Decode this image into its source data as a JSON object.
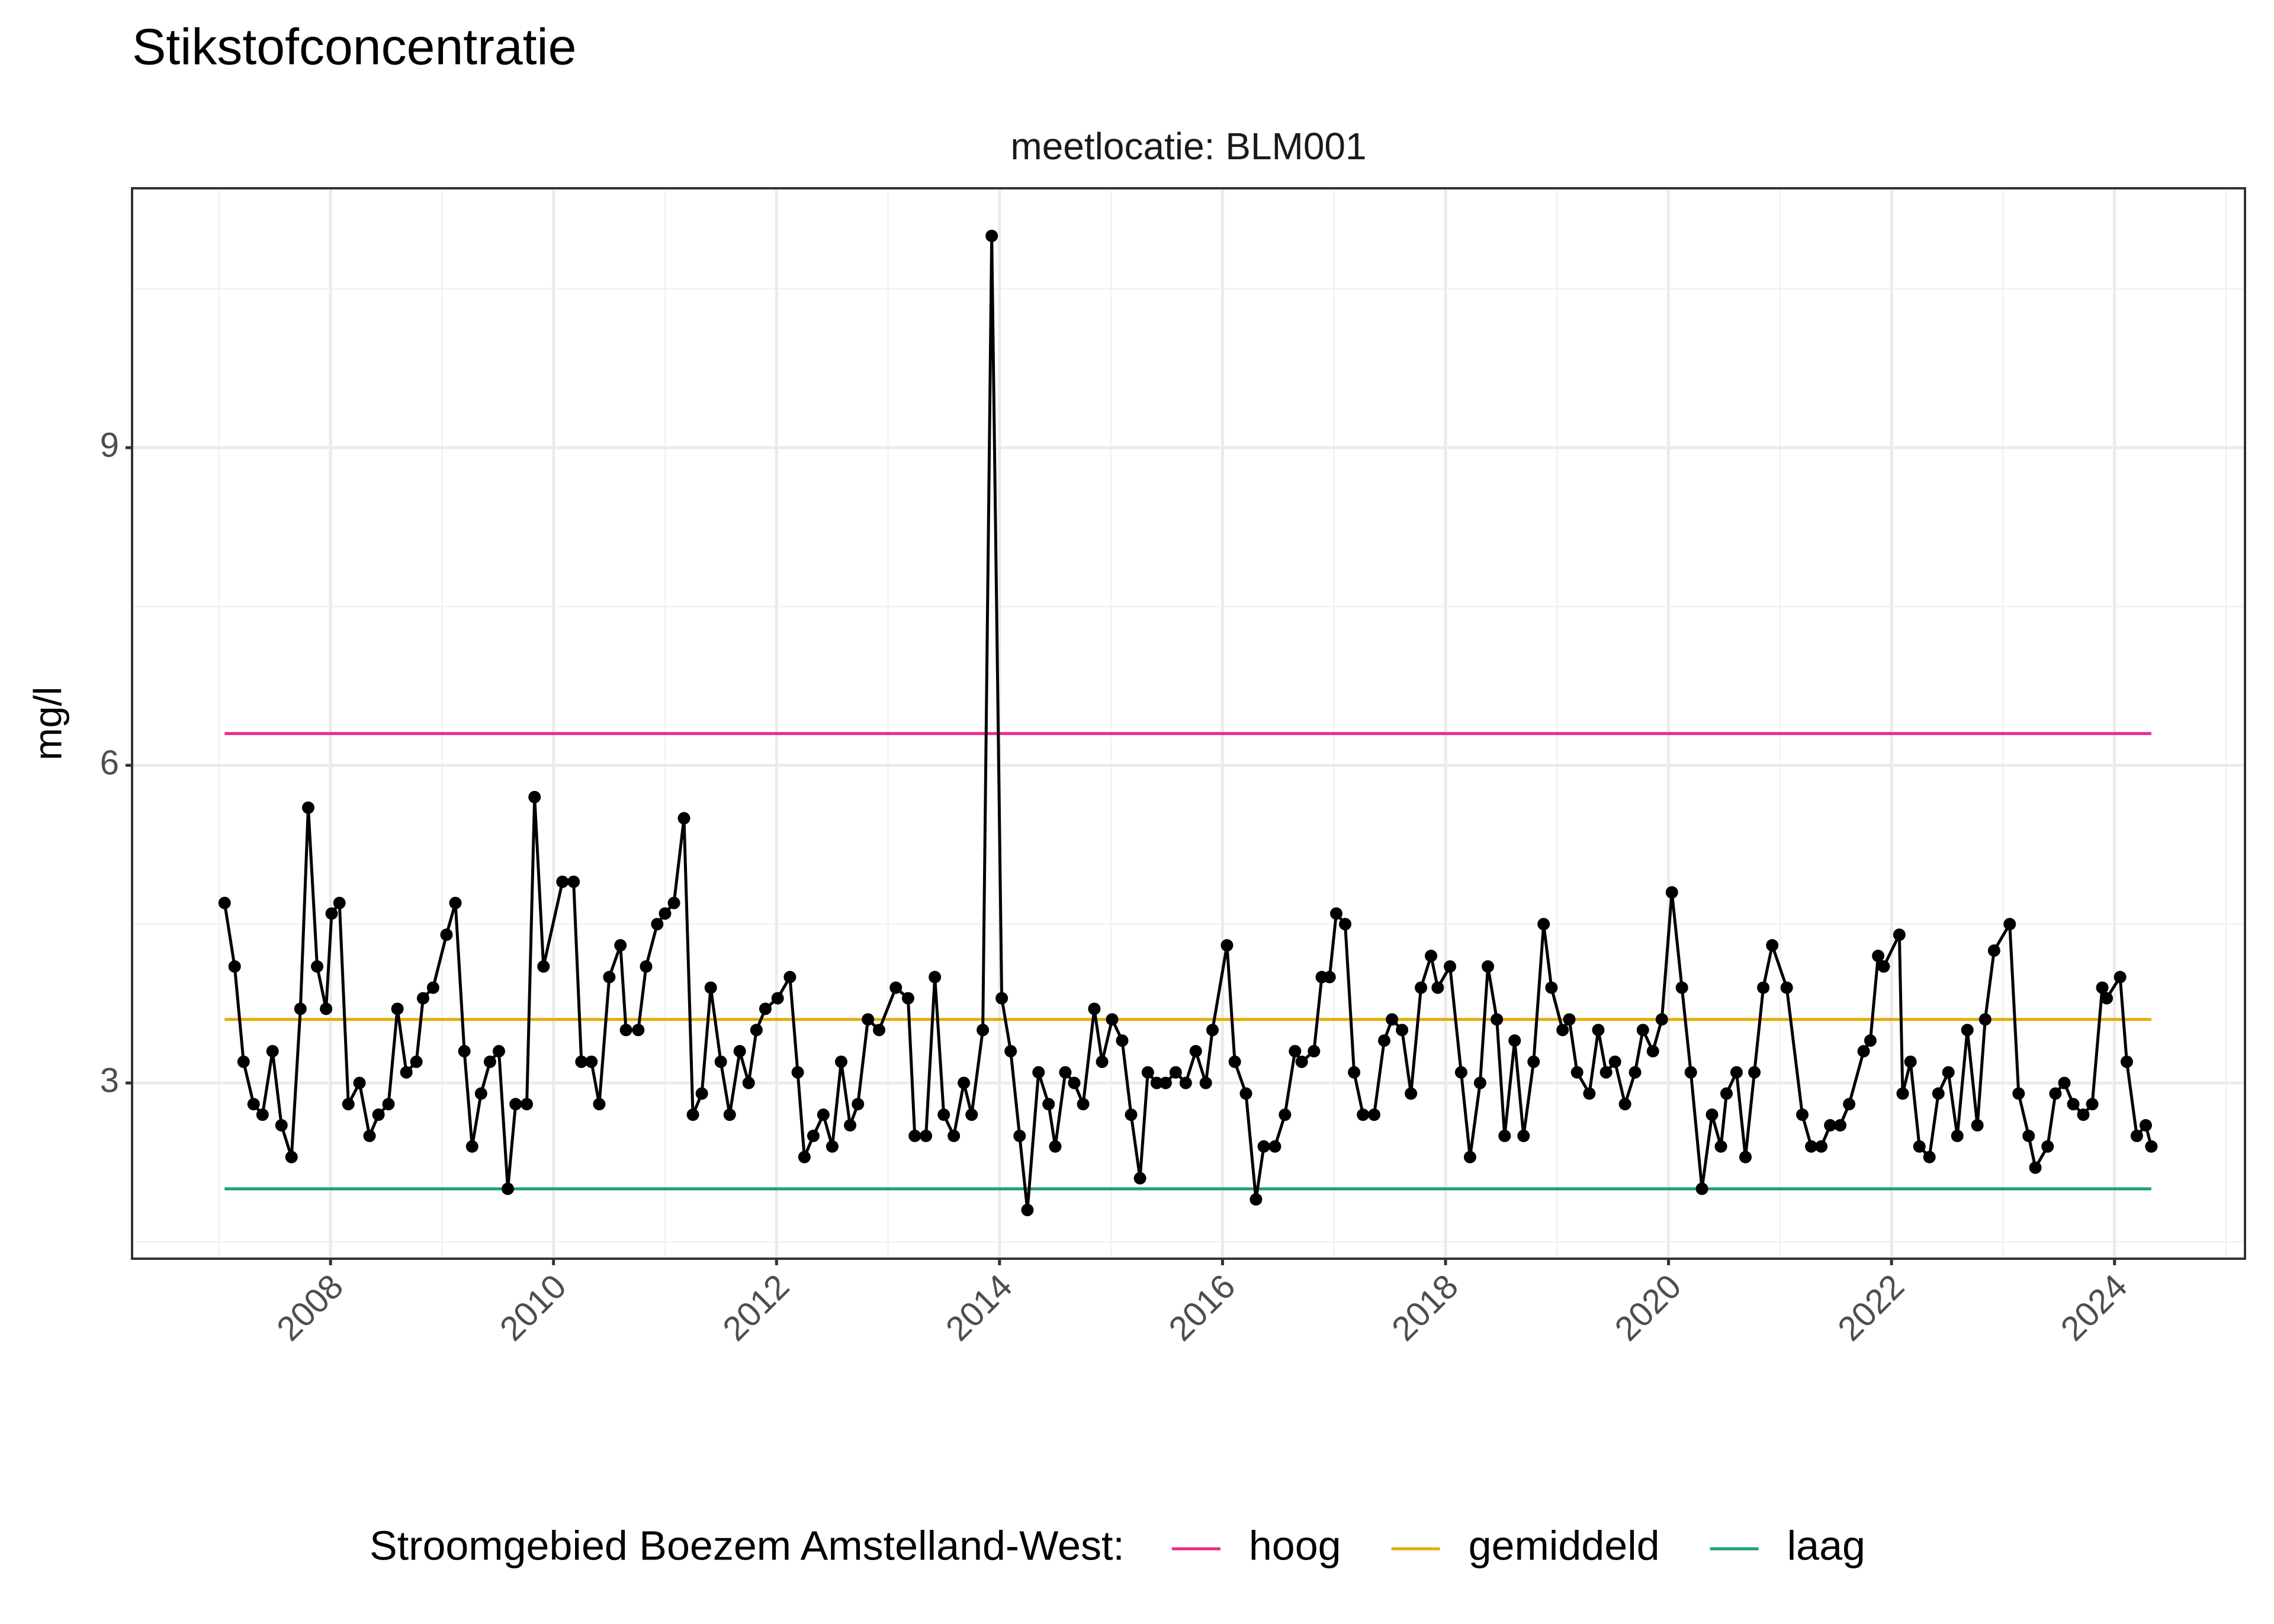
{
  "chart_data": {
    "type": "line",
    "title": "Stikstofconcentratie",
    "subtitle": "meetlocatie: BLM001",
    "y_label": "mg/l",
    "legend_title": "Stroomgebied Boezem Amstelland-West:",
    "legend_position": "bottom",
    "grid": true,
    "color": "#000000",
    "x": [
      2007.05,
      2007.14,
      2007.22,
      2007.31,
      2007.39,
      2007.48,
      2007.56,
      2007.65,
      2007.73,
      2007.8,
      2007.88,
      2007.96,
      2008.01,
      2008.08,
      2008.16,
      2008.26,
      2008.35,
      2008.43,
      2008.52,
      2008.6,
      2008.68,
      2008.77,
      2008.83,
      2008.92,
      2009.04,
      2009.12,
      2009.2,
      2009.27,
      2009.35,
      2009.43,
      2009.51,
      2009.59,
      2009.66,
      2009.76,
      2009.83,
      2009.91,
      2010.08,
      2010.18,
      2010.25,
      2010.34,
      2010.41,
      2010.5,
      2010.6,
      2010.65,
      2010.76,
      2010.83,
      2010.93,
      2011.0,
      2011.08,
      2011.17,
      2011.25,
      2011.33,
      2011.41,
      2011.5,
      2011.58,
      2011.67,
      2011.75,
      2011.82,
      2011.9,
      2012.01,
      2012.12,
      2012.19,
      2012.25,
      2012.33,
      2012.42,
      2012.5,
      2012.58,
      2012.66,
      2012.73,
      2012.82,
      2012.92,
      2013.07,
      2013.18,
      2013.24,
      2013.34,
      2013.42,
      2013.5,
      2013.59,
      2013.68,
      2013.75,
      2013.85,
      2013.93,
      2014.02,
      2014.1,
      2014.18,
      2014.25,
      2014.35,
      2014.44,
      2014.5,
      2014.59,
      2014.67,
      2014.75,
      2014.85,
      2014.92,
      2015.01,
      2015.1,
      2015.18,
      2015.26,
      2015.33,
      2015.41,
      2015.49,
      2015.58,
      2015.67,
      2015.76,
      2015.85,
      2015.91,
      2016.04,
      2016.11,
      2016.21,
      2016.3,
      2016.37,
      2016.47,
      2016.56,
      2016.65,
      2016.71,
      2016.82,
      2016.89,
      2016.96,
      2017.02,
      2017.1,
      2017.18,
      2017.26,
      2017.36,
      2017.45,
      2017.52,
      2017.61,
      2017.69,
      2017.78,
      2017.87,
      2017.93,
      2018.04,
      2018.14,
      2018.22,
      2018.31,
      2018.38,
      2018.46,
      2018.53,
      2018.62,
      2018.7,
      2018.79,
      2018.88,
      2018.95,
      2019.05,
      2019.11,
      2019.18,
      2019.29,
      2019.37,
      2019.44,
      2019.52,
      2019.61,
      2019.7,
      2019.77,
      2019.86,
      2019.94,
      2020.03,
      2020.12,
      2020.2,
      2020.3,
      2020.39,
      2020.47,
      2020.52,
      2020.61,
      2020.69,
      2020.77,
      2020.85,
      2020.93,
      2021.06,
      2021.2,
      2021.28,
      2021.37,
      2021.45,
      2021.54,
      2021.62,
      2021.75,
      2021.81,
      2021.88,
      2021.93,
      2022.07,
      2022.1,
      2022.17,
      2022.25,
      2022.34,
      2022.42,
      2022.51,
      2022.59,
      2022.68,
      2022.77,
      2022.84,
      2022.92,
      2023.06,
      2023.14,
      2023.23,
      2023.29,
      2023.4,
      2023.47,
      2023.55,
      2023.63,
      2023.72,
      2023.8,
      2023.89,
      2023.93,
      2024.05,
      2024.11,
      2024.2,
      2024.28,
      2024.33
    ],
    "values": [
      4.7,
      4.1,
      3.2,
      2.8,
      2.7,
      3.3,
      2.6,
      2.3,
      3.7,
      5.6,
      4.1,
      3.7,
      4.6,
      4.7,
      2.8,
      3.0,
      2.5,
      2.7,
      2.8,
      3.7,
      3.1,
      3.2,
      3.8,
      3.9,
      4.4,
      4.7,
      3.3,
      2.4,
      2.9,
      3.2,
      3.3,
      2.0,
      2.8,
      2.8,
      5.7,
      4.1,
      4.9,
      4.9,
      3.2,
      3.2,
      2.8,
      4.0,
      4.3,
      3.5,
      3.5,
      4.1,
      4.5,
      4.6,
      4.7,
      5.5,
      2.7,
      2.9,
      3.9,
      3.2,
      2.7,
      3.3,
      3.0,
      3.5,
      3.7,
      3.8,
      4.0,
      3.1,
      2.3,
      2.5,
      2.7,
      2.4,
      3.2,
      2.6,
      2.8,
      3.6,
      3.5,
      3.9,
      3.8,
      2.5,
      2.5,
      4.0,
      2.7,
      2.5,
      3.0,
      2.7,
      3.5,
      11.0,
      3.8,
      3.3,
      2.5,
      1.8,
      3.1,
      2.8,
      2.4,
      3.1,
      3.0,
      2.8,
      3.7,
      3.2,
      3.6,
      3.4,
      2.7,
      2.1,
      3.1,
      3.0,
      3.0,
      3.1,
      3.0,
      3.3,
      3.0,
      3.5,
      4.3,
      3.2,
      2.9,
      1.9,
      2.4,
      2.4,
      2.7,
      3.3,
      3.2,
      3.3,
      4.0,
      4.0,
      4.6,
      4.5,
      3.1,
      2.7,
      2.7,
      3.4,
      3.6,
      3.5,
      2.9,
      3.9,
      4.2,
      3.9,
      4.1,
      3.1,
      2.3,
      3.0,
      4.1,
      3.6,
      2.5,
      3.4,
      2.5,
      3.2,
      4.5,
      3.9,
      3.5,
      3.6,
      3.1,
      2.9,
      3.5,
      3.1,
      3.2,
      2.8,
      3.1,
      3.5,
      3.3,
      3.6,
      4.8,
      3.9,
      3.1,
      2.0,
      2.7,
      2.4,
      2.9,
      3.1,
      2.3,
      3.1,
      3.9,
      4.3,
      3.9,
      2.7,
      2.4,
      2.4,
      2.6,
      2.6,
      2.8,
      3.3,
      3.4,
      4.2,
      4.1,
      4.4,
      2.9,
      3.2,
      2.4,
      2.3,
      2.9,
      3.1,
      2.5,
      3.5,
      2.6,
      3.6,
      4.25,
      4.5,
      2.9,
      2.5,
      2.2,
      2.4,
      2.9,
      3.0,
      2.8,
      2.7,
      2.8,
      3.9,
      3.8,
      4.0,
      3.2,
      2.5,
      2.6,
      2.4
    ],
    "series": [
      {
        "name": "hoog",
        "color": "#e7298a",
        "x": [
          2007.05,
          2024.33
        ],
        "values": [
          6.3,
          6.3
        ]
      },
      {
        "name": "gemiddeld",
        "color": "#e6ab02",
        "x": [
          2007.05,
          2024.33
        ],
        "values": [
          3.6,
          3.6
        ]
      },
      {
        "name": "laag",
        "color": "#1b9e77",
        "x": [
          2007.05,
          2024.33
        ],
        "values": [
          2.0,
          2.0
        ]
      }
    ],
    "xlim": [
      2006.22,
      2025.17
    ],
    "xticks": [
      2008,
      2010,
      2012,
      2014,
      2016,
      2018,
      2020,
      2022,
      2024
    ],
    "ylim": [
      1.34,
      11.45
    ],
    "yticks": [
      3,
      6,
      9
    ]
  }
}
